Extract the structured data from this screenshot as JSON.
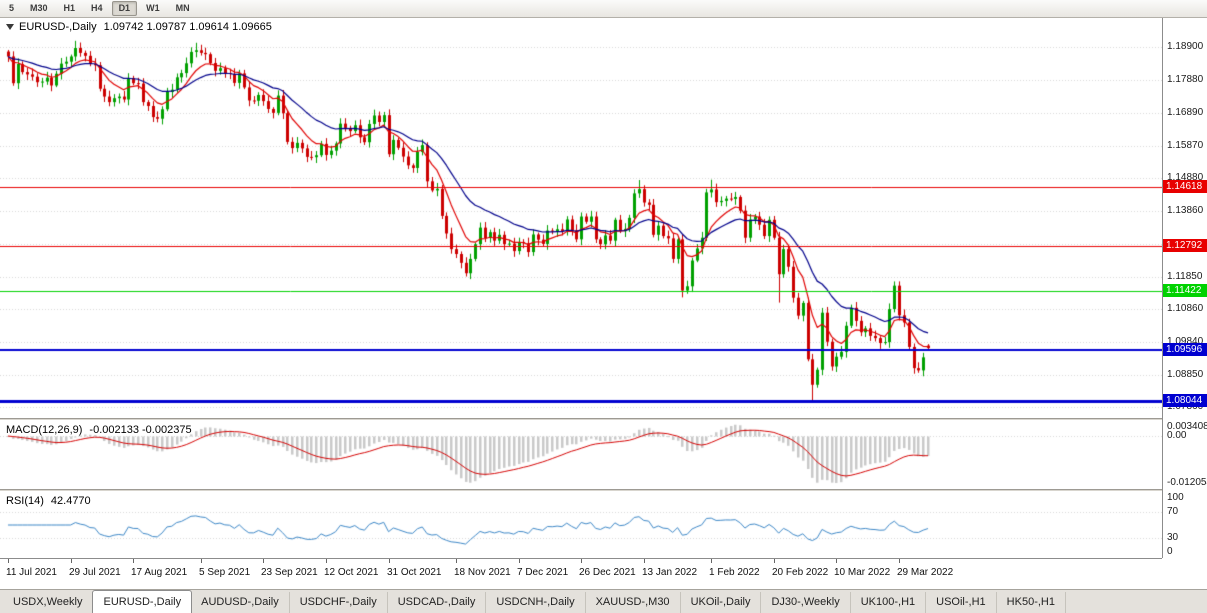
{
  "toolbar": {
    "timeframes": [
      {
        "label": "5",
        "active": false
      },
      {
        "label": "M30",
        "active": false
      },
      {
        "label": "H1",
        "active": false
      },
      {
        "label": "H4",
        "active": false
      },
      {
        "label": "D1",
        "active": true
      },
      {
        "label": "W1",
        "active": false
      },
      {
        "label": "MN",
        "active": false
      }
    ]
  },
  "main_chart": {
    "symbol_period": "EURUSD-,Daily",
    "ohlc": "1.09742 1.09787 1.09614 1.09665"
  },
  "macd_panel": {
    "name": "MACD(12,26,9)",
    "values": "-0.002133 -0.002375"
  },
  "rsi_panel": {
    "name": "RSI(14)",
    "value": "42.4770"
  },
  "tabs": [
    {
      "label": "USDX,Weekly",
      "active": false
    },
    {
      "label": "EURUSD-,Daily",
      "active": true
    },
    {
      "label": "AUDUSD-,Daily",
      "active": false
    },
    {
      "label": "USDCHF-,Daily",
      "active": false
    },
    {
      "label": "USDCAD-,Daily",
      "active": false
    },
    {
      "label": "USDCNH-,Daily",
      "active": false
    },
    {
      "label": "XAUUSD-,M30",
      "active": false
    },
    {
      "label": "UKOil-,Daily",
      "active": false
    },
    {
      "label": "DJ30-,Weekly",
      "active": false
    },
    {
      "label": "UK100-,H1",
      "active": false
    },
    {
      "label": "USOil-,H1",
      "active": false
    },
    {
      "label": "HK50-,H1",
      "active": false
    }
  ],
  "chart_data": {
    "type": "candlestick",
    "symbol": "EURUSD-",
    "timeframe": "Daily",
    "current_ohlc": {
      "open": 1.09742,
      "high": 1.09787,
      "low": 1.09614,
      "close": 1.09665
    },
    "price_range": {
      "min": 1.0752,
      "max": 1.1979
    },
    "price_ticks": [
      "1.18900",
      "1.17880",
      "1.16890",
      "1.15870",
      "1.14880",
      "1.13860",
      "1.12870",
      "1.11850",
      "1.10860",
      "1.09840",
      "1.08850",
      "1.07860"
    ],
    "first_open": 1.1876,
    "closes": [
      1.1861,
      1.1779,
      1.1838,
      1.1813,
      1.1806,
      1.1799,
      1.1782,
      1.1784,
      1.1796,
      1.1772,
      1.1808,
      1.1839,
      1.1845,
      1.1861,
      1.1887,
      1.1872,
      1.1863,
      1.1838,
      1.1834,
      1.1762,
      1.1738,
      1.1721,
      1.1733,
      1.1738,
      1.1729,
      1.1795,
      1.1779,
      1.1778,
      1.1721,
      1.1709,
      1.1675,
      1.167,
      1.1699,
      1.1752,
      1.1759,
      1.1797,
      1.181,
      1.184,
      1.1875,
      1.188,
      1.1872,
      1.1868,
      1.1841,
      1.1817,
      1.1825,
      1.181,
      1.1807,
      1.178,
      1.1809,
      1.1766,
      1.1726,
      1.1725,
      1.1743,
      1.1724,
      1.17,
      1.1688,
      1.1741,
      1.1687,
      1.1599,
      1.158,
      1.1596,
      1.1579,
      1.1553,
      1.1552,
      1.1558,
      1.1593,
      1.1559,
      1.1572,
      1.1594,
      1.1655,
      1.1642,
      1.1632,
      1.165,
      1.1613,
      1.1598,
      1.1654,
      1.168,
      1.166,
      1.1681,
      1.1561,
      1.1605,
      1.1581,
      1.1554,
      1.1527,
      1.1519,
      1.1568,
      1.1589,
      1.1478,
      1.145,
      1.1455,
      1.1372,
      1.1318,
      1.127,
      1.1255,
      1.1228,
      1.1196,
      1.124,
      1.1285,
      1.1336,
      1.1304,
      1.1322,
      1.1296,
      1.1314,
      1.1285,
      1.1287,
      1.1264,
      1.1292,
      1.1288,
      1.1261,
      1.1315,
      1.1299,
      1.1286,
      1.1327,
      1.1324,
      1.1331,
      1.1325,
      1.1361,
      1.1328,
      1.13,
      1.137,
      1.1354,
      1.137,
      1.13,
      1.1285,
      1.1312,
      1.1296,
      1.136,
      1.1325,
      1.1332,
      1.1366,
      1.1441,
      1.1454,
      1.1413,
      1.1406,
      1.1314,
      1.1342,
      1.131,
      1.1303,
      1.124,
      1.13,
      1.1143,
      1.1156,
      1.1235,
      1.1272,
      1.1305,
      1.1444,
      1.1453,
      1.1414,
      1.1418,
      1.1425,
      1.1424,
      1.143,
      1.1388,
      1.1305,
      1.1361,
      1.137,
      1.1345,
      1.131,
      1.136,
      1.1305,
      1.1193,
      1.127,
      1.1216,
      1.1121,
      1.1066,
      1.1105,
      1.0932,
      1.0854,
      1.09,
      1.1075,
      1.0986,
      1.091,
      1.094,
      1.0955,
      1.1035,
      1.109,
      1.105,
      1.1015,
      1.1027,
      1.1004,
      1.0997,
      1.0982,
      1.0985,
      1.1086,
      1.1158,
      1.1067,
      1.1045,
      1.097,
      1.0905,
      1.0898,
      1.0938,
      1.09665
    ],
    "overrides": {
      "14": {
        "h": 1.1909
      },
      "39": {
        "h": 1.1903
      },
      "95": {
        "l": 1.1186
      },
      "131": {
        "h": 1.1482
      },
      "140": {
        "l": 1.1122
      },
      "146": {
        "h": 1.1483
      },
      "160": {
        "l": 1.1106
      },
      "167": {
        "l": 1.0806
      },
      "184": {
        "h": 1.1171
      },
      "191": {
        "o": 1.09742,
        "h": 1.09787,
        "l": 1.09614
      }
    },
    "moving_averages": [
      {
        "period": 8,
        "color": "#e00000"
      },
      {
        "period": 21,
        "color": "#00008b"
      }
    ],
    "hlines": [
      {
        "price": 1.14618,
        "label": "1.14618",
        "color": "#e80000",
        "width": 1
      },
      {
        "price": 1.12792,
        "label": "1.12792",
        "color": "#e80000",
        "width": 1
      },
      {
        "price": 1.11422,
        "label": "1.11422",
        "color": "#00d200",
        "width": 1
      },
      {
        "price": 1.09596,
        "label": "1.09596",
        "color": "#0000d0",
        "width": 2
      },
      {
        "price": 1.08044,
        "label": "1.08044",
        "color": "#0000d0",
        "width": 3
      }
    ],
    "macd": {
      "fast": 12,
      "slow": 26,
      "signal": 9,
      "range": {
        "min": -0.012054,
        "max": 0.003408
      },
      "axis_ticks": [
        {
          "label": "0.003408",
          "value": 0.003408
        },
        {
          "label": "0.00",
          "value": 0
        },
        {
          "label": "-0.012054",
          "value": -0.012054
        }
      ]
    },
    "rsi": {
      "period": 14,
      "range": {
        "min": 0,
        "max": 100
      },
      "levels": [
        70,
        30
      ],
      "axis_ticks": [
        {
          "label": "100",
          "value": 100
        },
        {
          "label": "70",
          "value": 70
        },
        {
          "label": "30",
          "value": 30
        },
        {
          "label": "0",
          "value": 0
        }
      ]
    },
    "time_labels": [
      {
        "label": "11 Jul 2021",
        "index": 0
      },
      {
        "label": "29 Jul 2021",
        "index": 13
      },
      {
        "label": "17 Aug 2021",
        "index": 26
      },
      {
        "label": "5 Sep 2021",
        "index": 40
      },
      {
        "label": "23 Sep 2021",
        "index": 53
      },
      {
        "label": "12 Oct 2021",
        "index": 66
      },
      {
        "label": "31 Oct 2021",
        "index": 79
      },
      {
        "label": "18 Nov 2021",
        "index": 93
      },
      {
        "label": "7 Dec 2021",
        "index": 106
      },
      {
        "label": "26 Dec 2021",
        "index": 119
      },
      {
        "label": "13 Jan 2022",
        "index": 132
      },
      {
        "label": "1 Feb 2022",
        "index": 146
      },
      {
        "label": "20 Feb 2022",
        "index": 159
      },
      {
        "label": "10 Mar 2022",
        "index": 172
      },
      {
        "label": "29 Mar 2022",
        "index": 185
      }
    ],
    "style": {
      "candle_up": "#00a000",
      "candle_down": "#cc0000",
      "grid": "#d6d6d6",
      "macd_histogram": "#c9c9c9",
      "macd_signal": "#d40000",
      "rsi_line": "#3b86c6"
    }
  }
}
